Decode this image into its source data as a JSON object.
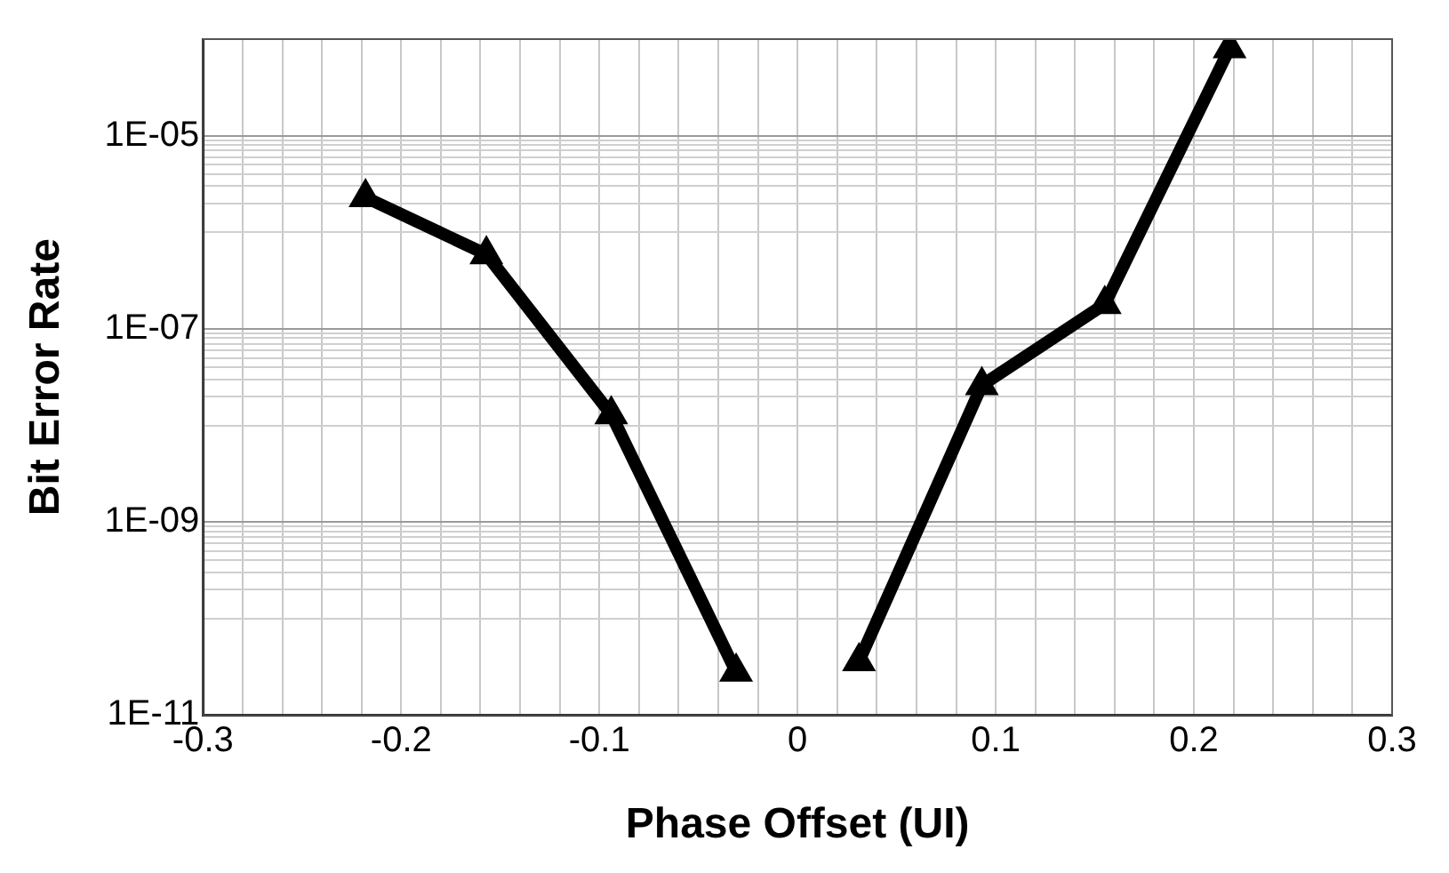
{
  "chart_data": {
    "type": "line",
    "xlabel": "Phase Offset (UI)",
    "ylabel": "Bit Error Rate",
    "log": "y",
    "grid": true,
    "legend": false,
    "marker": "triangle",
    "line_style": "solid",
    "xlim": [
      -0.3,
      0.3
    ],
    "xticks": [
      -0.3,
      {
        "value": -0.28,
        "label": null
      },
      {
        "value": -0.26,
        "label": null
      },
      {
        "value": -0.24,
        "label": null
      },
      {
        "value": -0.22,
        "label": null
      },
      -0.2,
      {
        "value": -0.18,
        "label": null
      },
      {
        "value": -0.16,
        "label": null
      },
      {
        "value": -0.14,
        "label": null
      },
      {
        "value": -0.12,
        "label": null
      },
      -0.1,
      {
        "value": -0.08,
        "label": null
      },
      {
        "value": -0.06,
        "label": null
      },
      {
        "value": -0.04,
        "label": null
      },
      {
        "value": -0.02,
        "label": null
      },
      0,
      {
        "value": 0.02,
        "label": null
      },
      {
        "value": 0.04,
        "label": null
      },
      {
        "value": 0.06,
        "label": null
      },
      {
        "value": 0.08,
        "label": null
      },
      0.1,
      {
        "value": 0.12,
        "label": null
      },
      {
        "value": 0.14,
        "label": null
      },
      {
        "value": 0.16,
        "label": null
      },
      {
        "value": 0.18,
        "label": null
      },
      0.2,
      {
        "value": 0.22,
        "label": null
      },
      {
        "value": 0.24,
        "label": null
      },
      {
        "value": 0.26,
        "label": null
      },
      {
        "value": 0.28,
        "label": null
      },
      0.3
    ],
    "ylim": [
      1e-11,
      0.0001
    ],
    "yticks": [
      {
        "value": 1e-11,
        "label": "1E-11"
      },
      {
        "value": 1e-10,
        "label": null
      },
      {
        "value": 2e-10,
        "label": null
      },
      {
        "value": 3e-10,
        "label": null
      },
      {
        "value": 4e-10,
        "label": null
      },
      {
        "value": 5e-10,
        "label": null
      },
      {
        "value": 6e-10,
        "label": null
      },
      {
        "value": 7e-10,
        "label": null
      },
      {
        "value": 8e-10,
        "label": null
      },
      {
        "value": 9e-10,
        "label": null
      },
      {
        "value": 1e-09,
        "label": "1E-09"
      },
      {
        "value": 1e-08,
        "label": null
      },
      {
        "value": 2e-08,
        "label": null
      },
      {
        "value": 3e-08,
        "label": null
      },
      {
        "value": 4e-08,
        "label": null
      },
      {
        "value": 5e-08,
        "label": null
      },
      {
        "value": 6e-08,
        "label": null
      },
      {
        "value": 7e-08,
        "label": null
      },
      {
        "value": 8e-08,
        "label": null
      },
      {
        "value": 9e-08,
        "label": null
      },
      {
        "value": 1e-07,
        "label": "1E-07"
      },
      {
        "value": 1e-06,
        "label": null
      },
      {
        "value": 2e-06,
        "label": null
      },
      {
        "value": 3e-06,
        "label": null
      },
      {
        "value": 4e-06,
        "label": null
      },
      {
        "value": 5e-06,
        "label": null
      },
      {
        "value": 6e-06,
        "label": null
      },
      {
        "value": 7e-06,
        "label": null
      },
      {
        "value": 8e-06,
        "label": null
      },
      {
        "value": 9e-06,
        "label": null
      },
      {
        "value": 1e-05,
        "label": "1E-05"
      },
      {
        "value": 0.0001,
        "label": null
      }
    ],
    "series": [
      {
        "color": "#000000",
        "x": [
          -0.218,
          -0.157,
          -0.094,
          -0.031
        ],
        "values": [
          2.3e-06,
          5.9e-07,
          1.3e-08,
          2.8e-11
        ]
      },
      {
        "color": "#000000",
        "x": [
          0.031,
          0.093,
          0.155,
          0.218
        ],
        "values": [
          3.6e-11,
          2.6e-08,
          1.8e-07,
          8e-05
        ]
      }
    ]
  }
}
